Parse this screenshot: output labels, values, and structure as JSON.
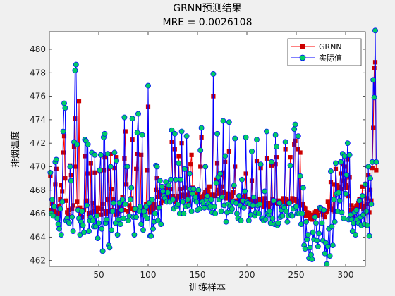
{
  "chart_data": {
    "type": "line",
    "title": "GRNN预测结果",
    "subtitle": "MRE = 0.0026108",
    "xlabel": "训练样本",
    "ylabel": "排烟温度",
    "xlim": [
      0,
      320
    ],
    "ylim": [
      461.5,
      481.5
    ],
    "xticks": [
      50,
      100,
      150,
      200,
      250,
      300
    ],
    "yticks": [
      462,
      464,
      466,
      468,
      470,
      472,
      474,
      476,
      478,
      480
    ],
    "legend_position": "top-right",
    "series": [
      {
        "name": "GRNN",
        "color": "#ff0000",
        "marker": "square",
        "values": [
          469.2,
          466.3,
          466.8,
          466.0,
          466.4,
          468.5,
          469.8,
          466.1,
          466.0,
          466.6,
          467.2,
          468.4,
          467.9,
          471.2,
          472.6,
          469.0,
          467.1,
          466.1,
          465.9,
          466.3,
          470.1,
          469.3,
          466.4,
          466.7,
          471.7,
          474.1,
          470.0,
          467.0,
          466.4,
          475.6,
          466.5,
          466.0,
          465.7,
          466.2,
          466.3,
          470.9,
          467.0,
          467.1,
          469.4,
          466.0,
          465.8,
          470.3,
          466.1,
          466.9,
          466.2,
          469.5,
          466.2,
          466.1,
          466.5,
          466.4,
          469.6,
          465.9,
          466.4,
          466.8,
          469.7,
          470.8,
          466.0,
          466.2,
          467.2,
          469.8,
          466.2,
          471.1,
          468.1,
          466.3,
          467.2,
          469.9,
          465.9,
          470.8,
          466.0,
          466.2,
          466.7,
          466.5,
          466.3,
          467.4,
          466.3,
          470.7,
          473.0,
          468.5,
          470.0,
          466.2,
          466.7,
          466.4,
          467.3,
          472.3,
          466.4,
          466.3,
          466.4,
          469.8,
          471.1,
          466.3,
          466.4,
          466.5,
          471.0,
          466.5,
          465.9,
          466.5,
          466.5,
          466.8,
          469.7,
          475.1,
          466.4,
          466.1,
          466.3,
          466.6,
          466.4,
          466.8,
          466.5,
          468.0,
          469.0,
          467.4,
          467.6,
          467.8,
          466.9,
          467.8,
          467.1,
          467.2,
          468.0,
          467.3,
          468.2,
          467.5,
          467.6,
          467.4,
          468.1,
          472.1,
          467.5,
          467.2,
          471.5,
          467.0,
          467.3,
          467.5,
          470.9,
          467.4,
          468.1,
          472.0,
          467.6,
          467.5,
          468.2,
          467.4,
          469.8,
          467.6,
          467.0,
          467.8,
          470.2,
          471.0,
          468.2,
          467.8,
          467.6,
          467.5,
          467.6,
          467.5,
          467.7,
          467.4,
          470.0,
          472.5,
          467.3,
          467.5,
          467.6,
          467.8,
          467.4,
          468.0,
          467.9,
          468.3,
          467.6,
          467.5,
          467.6,
          476.0,
          467.6,
          467.5,
          468.9,
          470.3,
          468.0,
          467.7,
          469.3,
          467.7,
          468.3,
          469.5,
          467.8,
          470.4,
          467.3,
          467.6,
          467.7,
          471.3,
          467.6,
          467.2,
          467.5,
          467.8,
          468.3,
          470.0,
          467.1,
          466.9,
          467.0,
          467.2,
          467.1,
          466.9,
          467.3,
          467.4,
          467.1,
          467.6,
          469.4,
          467.2,
          466.8,
          466.9,
          467.2,
          466.6,
          468.8,
          467.1,
          467.4,
          466.9,
          467.0,
          470.5,
          467.1,
          466.7,
          467.2,
          469.9,
          466.8,
          467.1,
          466.6,
          467.3,
          466.9,
          470.7,
          466.7,
          466.6,
          466.9,
          466.8,
          470.1,
          467.2,
          467.1,
          466.9,
          470.2,
          470.8,
          467.1,
          466.8,
          467.0,
          466.9,
          467.1,
          466.6,
          467.3,
          467.0,
          471.5,
          467.2,
          466.8,
          466.9,
          467.1,
          470.8,
          467.0,
          467.3,
          467.1,
          471.9,
          472.2,
          467.2,
          466.9,
          471.5,
          467.1,
          471.2,
          466.8,
          466.7,
          466.8,
          466.5,
          466.4,
          465.8,
          466.1,
          465.9,
          466.0,
          465.6,
          465.7,
          465.5,
          465.9,
          465.8,
          466.1,
          466.2,
          465.8,
          465.9,
          466.3,
          466.5,
          466.4,
          466.2,
          465.9,
          466.3,
          465.7,
          466.1,
          466.2,
          467.0,
          466.8,
          466.6,
          468.7,
          466.4,
          466.3,
          468.5,
          466.2,
          469.8,
          468.4,
          468.1,
          467.9,
          468.3,
          469.4,
          468.1,
          470.2,
          468.8,
          470.0,
          468.4,
          468.2,
          470.6,
          467.5,
          469.1,
          466.3,
          466.7,
          466.1,
          465.8,
          466.5,
          466.2,
          466.6,
          466.7,
          466.9,
          467.2,
          466.6,
          466.9,
          468.3,
          466.4,
          466.6,
          468.5,
          467.3,
          466.8,
          469.3,
          466.1,
          468.0,
          467.1,
          469.9,
          473.3,
          478.4,
          478.9,
          469.7
        ]
      },
      {
        "name": "实际值",
        "color": "#0000ff",
        "marker": "circle",
        "marker_fill": "#00cc66",
        "values": [
          469.5,
          466.0,
          467.2,
          465.8,
          466.6,
          470.4,
          470.6,
          465.6,
          465.1,
          464.7,
          466.4,
          464.2,
          467.0,
          473.0,
          475.4,
          475.0,
          465.4,
          465.6,
          465.3,
          465.2,
          470.0,
          468.8,
          465.7,
          464.5,
          472.1,
          478.2,
          478.7,
          471.9,
          466.3,
          465.6,
          464.2,
          465.3,
          466.2,
          465.0,
          464.4,
          472.3,
          472.2,
          466.7,
          471.9,
          464.5,
          465.4,
          465.7,
          471.2,
          465.4,
          464.9,
          471.0,
          464.9,
          465.8,
          463.9,
          465.2,
          469.7,
          471.0,
          464.7,
          462.8,
          472.5,
          472.8,
          465.2,
          465.5,
          471.1,
          463.3,
          463.1,
          470.0,
          464.6,
          466.2,
          466.9,
          471.2,
          465.2,
          470.5,
          464.2,
          465.5,
          466.9,
          465.1,
          466.3,
          467.2,
          465.6,
          474.2,
          466.8,
          470.0,
          470.0,
          465.4,
          465.8,
          467.2,
          468.2,
          474.1,
          465.7,
          464.2,
          466.4,
          465.7,
          472.9,
          474.5,
          466.2,
          466.6,
          465.1,
          472.7,
          464.6,
          466.2,
          465.8,
          466.6,
          465.6,
          476.9,
          466.9,
          464.1,
          464.1,
          467.2,
          464.7,
          465.3,
          466.0,
          470.1,
          470.0,
          465.4,
          466.5,
          468.8,
          465.1,
          468.3,
          467.9,
          467.5,
          467.3,
          468.7,
          467.0,
          467.8,
          468.4,
          467.0,
          468.9,
          473.1,
          467.2,
          466.4,
          472.8,
          468.9,
          466.6,
          466.8,
          470.3,
          466.0,
          468.9,
          473.0,
          467.0,
          466.0,
          469.8,
          466.6,
          472.6,
          467.2,
          466.7,
          469.4,
          468.1,
          466.2,
          467.7,
          468.1,
          467.2,
          467.4,
          467.0,
          466.3,
          468.0,
          466.4,
          471.4,
          473.3,
          467.0,
          466.8,
          466.5,
          470.0,
          467.2,
          467.5,
          466.8,
          466.5,
          466.6,
          467.2,
          466.1,
          477.9,
          466.6,
          466.0,
          468.6,
          472.8,
          469.1,
          467.2,
          469.4,
          466.2,
          467.4,
          473.9,
          466.7,
          470.9,
          465.3,
          466.1,
          466.8,
          473.8,
          466.6,
          466.2,
          466.4,
          467.0,
          468.4,
          472.4,
          466.9,
          466.0,
          465.6,
          467.5,
          466.7,
          465.4,
          468.9,
          467.1,
          466.5,
          467.9,
          472.5,
          467.0,
          466.9,
          465.4,
          466.8,
          465.9,
          471.3,
          466.7,
          467.4,
          465.8,
          466.1,
          472.3,
          466.7,
          466.0,
          466.8,
          470.2,
          465.6,
          465.6,
          465.4,
          467.9,
          465.5,
          473.0,
          466.0,
          465.9,
          466.2,
          465.2,
          470.4,
          465.6,
          467.1,
          465.1,
          472.7,
          471.7,
          465.0,
          465.2,
          466.9,
          465.7,
          466.3,
          465.8,
          466.6,
          466.5,
          472.1,
          466.2,
          465.3,
          465.8,
          466.9,
          470.1,
          465.9,
          465.8,
          466.4,
          473.2,
          473.6,
          466.6,
          466.0,
          472.6,
          466.0,
          469.2,
          465.1,
          466.0,
          468.2,
          463.3,
          463.0,
          465.3,
          463.8,
          464.2,
          462.2,
          463.1,
          462.5,
          462.1,
          464.4,
          463.8,
          465.7,
          465.2,
          463.7,
          463.2,
          464.3,
          466.5,
          466.4,
          465.2,
          463.7,
          466.3,
          462.6,
          463.5,
          461.7,
          463.2,
          464.7,
          462.4,
          469.6,
          464.9,
          463.3,
          467.2,
          465.3,
          470.3,
          467.7,
          466.2,
          467.8,
          467.1,
          470.4,
          466.1,
          471.1,
          465.6,
          470.9,
          467.7,
          469.3,
          472.0,
          465.5,
          471.0,
          465.9,
          465.5,
          464.5,
          465.2,
          466.1,
          464.2,
          466.3,
          465.5,
          465.2,
          467.1,
          465.7,
          465.0,
          467.5,
          465.9,
          465.1,
          468.5,
          466.2,
          465.0,
          470.0,
          464.1,
          469.0,
          466.8,
          470.4,
          477.4,
          475.9,
          481.6,
          470.4
        ]
      }
    ]
  }
}
